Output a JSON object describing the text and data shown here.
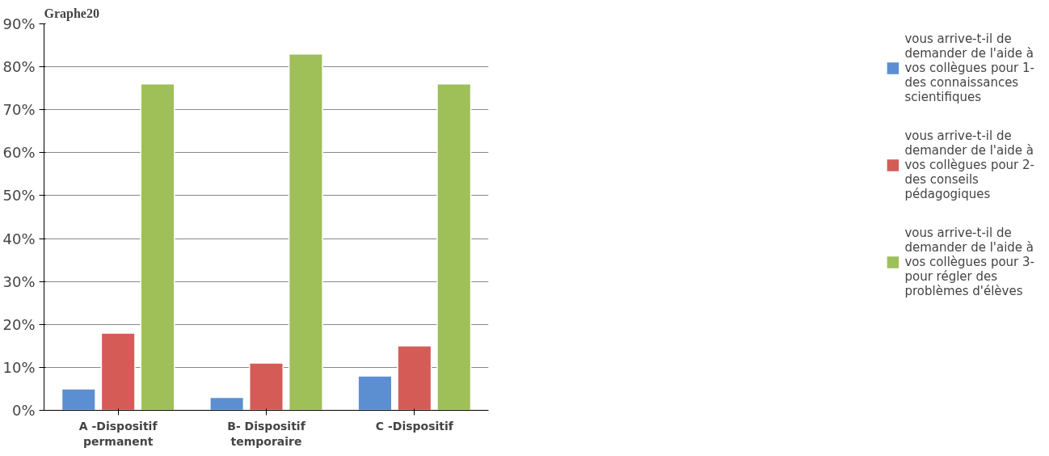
{
  "chart_data": {
    "type": "bar",
    "title": "Graphe20",
    "categories": [
      "A -Dispositif permanent",
      "B- Dispositif temporaire",
      "C -Dispositif"
    ],
    "series": [
      {
        "name": "vous arrive-t-il de demander de l'aide à vos collègues pour 1- des connaissances scientifiques",
        "color": "#5b8fd1",
        "values": [
          5,
          3,
          8
        ]
      },
      {
        "name": "vous arrive-t-il de demander de l'aide à vos collègues pour 2- des conseils pédagogiques",
        "color": "#d55b57",
        "values": [
          18,
          11,
          15
        ]
      },
      {
        "name": "vous arrive-t-il de demander de l'aide à vos collègues pour 3- pour régler des problèmes d'élèves",
        "color": "#9fbf59",
        "values": [
          76,
          83,
          76
        ]
      }
    ],
    "ylim": [
      0,
      90
    ],
    "yticks": [
      {
        "value": 0,
        "label": "0%"
      },
      {
        "value": 10,
        "label": "10%"
      },
      {
        "value": 20,
        "label": "20%"
      },
      {
        "value": 30,
        "label": "30%"
      },
      {
        "value": 40,
        "label": "40%"
      },
      {
        "value": 50,
        "label": "50%"
      },
      {
        "value": 60,
        "label": "60%"
      },
      {
        "value": 70,
        "label": "70%"
      },
      {
        "value": 80,
        "label": "80%"
      },
      {
        "value": 90,
        "label": "90%"
      }
    ],
    "grid": "y",
    "legend": "right"
  }
}
